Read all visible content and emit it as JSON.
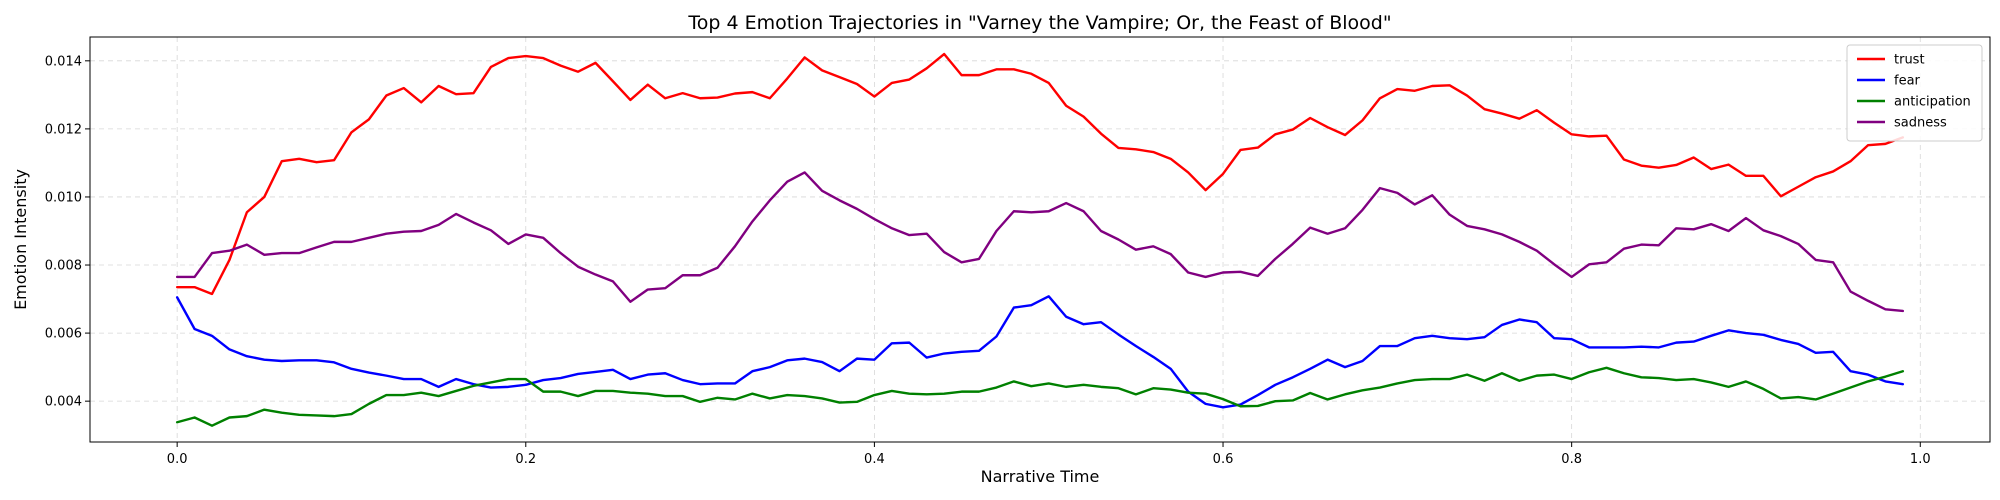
{
  "chart_data": {
    "type": "line",
    "title": "Top 4 Emotion Trajectories in \"Varney the Vampire; Or, the Feast of Blood\"",
    "xlabel": "Narrative Time",
    "ylabel": "Emotion Intensity",
    "xlim": [
      -0.05,
      1.04
    ],
    "ylim": [
      0.0028,
      0.0147
    ],
    "xticks": [
      0.0,
      0.2,
      0.4,
      0.6,
      0.8,
      1.0
    ],
    "xtick_labels": [
      "0.0",
      "0.2",
      "0.4",
      "0.6",
      "0.8",
      "1.0"
    ],
    "yticks": [
      0.004,
      0.006,
      0.008,
      0.01,
      0.012,
      0.014
    ],
    "ytick_labels": [
      "0.004",
      "0.006",
      "0.008",
      "0.010",
      "0.012",
      "0.014"
    ],
    "grid": true,
    "legend_position": "top-right",
    "x": [
      0.0,
      0.01,
      0.02,
      0.03,
      0.04,
      0.05,
      0.06,
      0.07,
      0.08,
      0.09,
      0.1,
      0.11,
      0.12,
      0.13,
      0.14,
      0.15,
      0.16,
      0.17,
      0.18,
      0.19,
      0.2,
      0.21,
      0.22,
      0.23,
      0.24,
      0.25,
      0.26,
      0.27,
      0.28,
      0.29,
      0.3,
      0.31,
      0.32,
      0.33,
      0.34,
      0.35,
      0.36,
      0.37,
      0.38,
      0.39,
      0.4,
      0.41,
      0.42,
      0.43,
      0.44,
      0.45,
      0.46,
      0.47,
      0.48,
      0.49,
      0.5,
      0.51,
      0.52,
      0.53,
      0.54,
      0.55,
      0.56,
      0.57,
      0.58,
      0.59,
      0.6,
      0.61,
      0.62,
      0.63,
      0.64,
      0.65,
      0.66,
      0.67,
      0.68,
      0.69,
      0.7,
      0.71,
      0.72,
      0.73,
      0.74,
      0.75,
      0.76,
      0.77,
      0.78,
      0.79,
      0.8,
      0.81,
      0.82,
      0.83,
      0.84,
      0.85,
      0.86,
      0.87,
      0.88,
      0.89,
      0.9,
      0.91,
      0.92,
      0.93,
      0.94,
      0.95,
      0.96,
      0.97,
      0.98,
      0.99
    ],
    "series": [
      {
        "name": "trust",
        "color": "#ff0000",
        "values": [
          0.00735,
          0.00735,
          0.00715,
          0.00815,
          0.00955,
          0.01,
          0.01105,
          0.01112,
          0.01102,
          0.01108,
          0.0119,
          0.01228,
          0.01298,
          0.0132,
          0.01278,
          0.01326,
          0.01302,
          0.01305,
          0.01382,
          0.01408,
          0.01414,
          0.01408,
          0.01386,
          0.01368,
          0.01394,
          0.0134,
          0.01285,
          0.0133,
          0.0129,
          0.01305,
          0.0129,
          0.01292,
          0.01304,
          0.01308,
          0.0129,
          0.01348,
          0.0141,
          0.01372,
          0.01352,
          0.01332,
          0.01295,
          0.01335,
          0.01345,
          0.01378,
          0.0142,
          0.01358,
          0.01358,
          0.01375,
          0.01375,
          0.01362,
          0.01335,
          0.01268,
          0.01236,
          0.01186,
          0.01144,
          0.0114,
          0.01132,
          0.01112,
          0.01072,
          0.0102,
          0.01068,
          0.01138,
          0.01145,
          0.01184,
          0.01198,
          0.01232,
          0.01205,
          0.01182,
          0.01225,
          0.0129,
          0.01317,
          0.01312,
          0.01326,
          0.01328,
          0.01298,
          0.01258,
          0.01245,
          0.0123,
          0.01255,
          0.01218,
          0.01184,
          0.01178,
          0.0118,
          0.0111,
          0.01092,
          0.01086,
          0.01094,
          0.01116,
          0.01082,
          0.01095,
          0.01062,
          0.01062,
          0.01002,
          0.0103,
          0.01058,
          0.01075,
          0.01105,
          0.01152,
          0.01156,
          0.01175
        ]
      },
      {
        "name": "fear",
        "color": "#0000ff",
        "values": [
          0.00705,
          0.00612,
          0.00592,
          0.00552,
          0.00532,
          0.00522,
          0.00518,
          0.0052,
          0.0052,
          0.00514,
          0.00495,
          0.00484,
          0.00475,
          0.00465,
          0.00465,
          0.00442,
          0.00465,
          0.0045,
          0.0044,
          0.00442,
          0.00448,
          0.00462,
          0.00468,
          0.0048,
          0.00486,
          0.00492,
          0.00465,
          0.00478,
          0.00482,
          0.00462,
          0.0045,
          0.00452,
          0.00452,
          0.00488,
          0.005,
          0.0052,
          0.00525,
          0.00515,
          0.00488,
          0.00525,
          0.00522,
          0.0057,
          0.00572,
          0.00528,
          0.0054,
          0.00545,
          0.00548,
          0.0059,
          0.00675,
          0.00682,
          0.00708,
          0.00648,
          0.00626,
          0.00632,
          0.00596,
          0.00562,
          0.0053,
          0.00495,
          0.00428,
          0.00392,
          0.00382,
          0.0039,
          0.00418,
          0.00448,
          0.0047,
          0.00495,
          0.00522,
          0.005,
          0.00518,
          0.00562,
          0.00562,
          0.00585,
          0.00592,
          0.00585,
          0.00582,
          0.00588,
          0.00624,
          0.0064,
          0.00632,
          0.00585,
          0.00582,
          0.00558,
          0.00558,
          0.00558,
          0.0056,
          0.00558,
          0.00572,
          0.00575,
          0.00592,
          0.00608,
          0.006,
          0.00595,
          0.0058,
          0.00568,
          0.00542,
          0.00545,
          0.00488,
          0.00478,
          0.00458,
          0.0045
        ]
      },
      {
        "name": "anticipation",
        "color": "#008000",
        "values": [
          0.00338,
          0.00352,
          0.00328,
          0.00352,
          0.00356,
          0.00375,
          0.00366,
          0.0036,
          0.00358,
          0.00356,
          0.00362,
          0.00392,
          0.00418,
          0.00418,
          0.00425,
          0.00415,
          0.0043,
          0.00445,
          0.00455,
          0.00465,
          0.00465,
          0.00428,
          0.00428,
          0.00415,
          0.0043,
          0.0043,
          0.00425,
          0.00422,
          0.00415,
          0.00415,
          0.00398,
          0.0041,
          0.00405,
          0.00422,
          0.00408,
          0.00418,
          0.00415,
          0.00408,
          0.00396,
          0.00398,
          0.00418,
          0.0043,
          0.00422,
          0.0042,
          0.00422,
          0.00428,
          0.00428,
          0.0044,
          0.00458,
          0.00444,
          0.00452,
          0.00442,
          0.00448,
          0.00442,
          0.00438,
          0.0042,
          0.00438,
          0.00434,
          0.00425,
          0.00422,
          0.00406,
          0.00385,
          0.00386,
          0.004,
          0.00402,
          0.00424,
          0.00405,
          0.0042,
          0.00432,
          0.0044,
          0.00452,
          0.00462,
          0.00465,
          0.00465,
          0.00478,
          0.0046,
          0.00482,
          0.0046,
          0.00475,
          0.00478,
          0.00465,
          0.00485,
          0.00498,
          0.00482,
          0.0047,
          0.00468,
          0.00462,
          0.00465,
          0.00455,
          0.00442,
          0.00458,
          0.00436,
          0.00408,
          0.00412,
          0.00405,
          0.00422,
          0.0044,
          0.00458,
          0.00472,
          0.00488
        ]
      },
      {
        "name": "sadness",
        "color": "#800080",
        "values": [
          0.00765,
          0.00765,
          0.00835,
          0.00842,
          0.0086,
          0.0083,
          0.00835,
          0.00835,
          0.00852,
          0.00868,
          0.00868,
          0.0088,
          0.00892,
          0.00898,
          0.009,
          0.00918,
          0.0095,
          0.00925,
          0.00902,
          0.00862,
          0.0089,
          0.0088,
          0.00835,
          0.00795,
          0.00772,
          0.00752,
          0.00692,
          0.00728,
          0.00732,
          0.0077,
          0.0077,
          0.00792,
          0.00855,
          0.00928,
          0.0099,
          0.01045,
          0.01072,
          0.01018,
          0.0099,
          0.00965,
          0.00935,
          0.00908,
          0.00888,
          0.00892,
          0.00838,
          0.00808,
          0.00818,
          0.009,
          0.00958,
          0.00955,
          0.00958,
          0.00982,
          0.00958,
          0.009,
          0.00875,
          0.00845,
          0.00855,
          0.00832,
          0.00778,
          0.00765,
          0.00778,
          0.0078,
          0.00768,
          0.00818,
          0.00862,
          0.0091,
          0.00892,
          0.00908,
          0.00962,
          0.01026,
          0.01012,
          0.00978,
          0.01005,
          0.00948,
          0.00915,
          0.00905,
          0.0089,
          0.00868,
          0.00842,
          0.00802,
          0.00765,
          0.00802,
          0.00808,
          0.00848,
          0.0086,
          0.00858,
          0.00908,
          0.00905,
          0.0092,
          0.009,
          0.00938,
          0.00902,
          0.00885,
          0.00862,
          0.00815,
          0.00808,
          0.00722,
          0.00695,
          0.0067,
          0.00665
        ]
      }
    ]
  }
}
